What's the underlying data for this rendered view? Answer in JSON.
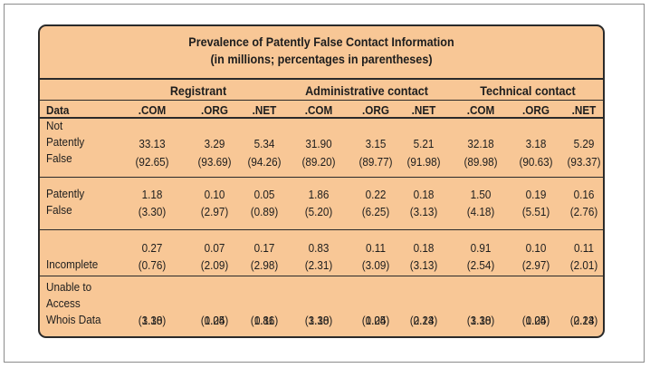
{
  "table": {
    "title_line1": "Prevalence of Patently False Contact Information",
    "title_line2": "(in millions; percentages in parentheses)",
    "groups": [
      "Registrant",
      "Administrative contact",
      "Technical contact"
    ],
    "data_label": "Data",
    "columns": [
      ".COM",
      ".ORG",
      ".NET",
      ".COM",
      ".ORG",
      ".NET",
      ".COM",
      ".ORG",
      ".NET"
    ],
    "rows": [
      {
        "label": [
          "Not",
          "Patently",
          "False"
        ],
        "values": [
          "33.13",
          "3.29",
          "5.34",
          "31.90",
          "3.15",
          "5.21",
          "32.18",
          "3.18",
          "5.29"
        ],
        "percents": [
          "(92.65)",
          "(93.69)",
          "(94.26)",
          "(89.20)",
          "(89.77)",
          "(91.98)",
          "(89.98)",
          "(90.63)",
          "(93.37)"
        ]
      },
      {
        "label": [
          "Patently",
          "False"
        ],
        "values": [
          "1.18",
          "0.10",
          "0.05",
          "1.86",
          "0.22",
          "0.18",
          "1.50",
          "0.19",
          "0.16"
        ],
        "percents": [
          "(3.30)",
          "(2.97)",
          "(0.89)",
          "(5.20)",
          "(6.25)",
          "(3.13)",
          "(4.18)",
          "(5.51)",
          "(2.76)"
        ]
      },
      {
        "label": [
          "Incomplete"
        ],
        "values": [
          "0.27",
          "0.07",
          "0.17",
          "0.83",
          "0.11",
          "0.18",
          "0.91",
          "0.10",
          "0.11"
        ],
        "percents": [
          "(0.76)",
          "(2.09)",
          "(2.98)",
          "(2.31)",
          "(3.09)",
          "(3.13)",
          "(2.54)",
          "(2.97)",
          "(2.01)"
        ]
      },
      {
        "label": [
          "Unable to",
          "Access",
          "Whois Data"
        ],
        "values": [
          "1.18",
          "0.04",
          "0.11",
          "1.18",
          "0.04",
          "0.13",
          "1.18",
          "0.04",
          "0.13"
        ],
        "percents": [
          "(3.30)",
          "(1.25)",
          "(1.86)",
          "(3.30)",
          "(1.25)",
          "(2.24)",
          "(3.30)",
          "(1.25)",
          "(2.24)"
        ]
      }
    ]
  }
}
